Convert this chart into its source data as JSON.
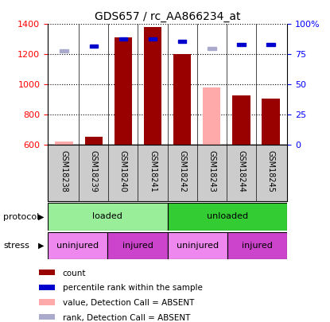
{
  "title": "GDS657 / rc_AA866234_at",
  "samples": [
    "GSM18238",
    "GSM18239",
    "GSM18240",
    "GSM18241",
    "GSM18242",
    "GSM18243",
    "GSM18244",
    "GSM18245"
  ],
  "bar_values": [
    620,
    655,
    1310,
    1380,
    1200,
    980,
    930,
    905
  ],
  "bar_absent": [
    true,
    false,
    false,
    false,
    false,
    true,
    false,
    false
  ],
  "rank_values": [
    78,
    82,
    88,
    88,
    86,
    80,
    83,
    83
  ],
  "rank_absent": [
    true,
    false,
    false,
    false,
    false,
    true,
    false,
    false
  ],
  "bar_color_present": "#990000",
  "bar_color_absent": "#ffaaaa",
  "rank_color_present": "#0000cc",
  "rank_color_absent": "#aaaacc",
  "ylim_left": [
    600,
    1400
  ],
  "ylim_right": [
    0,
    100
  ],
  "yticks_left": [
    600,
    800,
    1000,
    1200,
    1400
  ],
  "yticks_right": [
    0,
    25,
    50,
    75,
    100
  ],
  "ytick_labels_right": [
    "0",
    "25",
    "50",
    "75",
    "100%"
  ],
  "protocol_labels": [
    "loaded",
    "unloaded"
  ],
  "protocol_ranges": [
    [
      0,
      4
    ],
    [
      4,
      8
    ]
  ],
  "protocol_color_loaded": "#99ee99",
  "protocol_color_unloaded": "#33cc33",
  "stress_labels": [
    "uninjured",
    "injured",
    "uninjured",
    "injured"
  ],
  "stress_ranges": [
    [
      0,
      2
    ],
    [
      2,
      4
    ],
    [
      4,
      6
    ],
    [
      6,
      8
    ]
  ],
  "stress_color_uninjured": "#ee88ee",
  "stress_color_injured": "#cc44cc",
  "legend_items": [
    {
      "color": "#990000",
      "label": "count"
    },
    {
      "color": "#0000cc",
      "label": "percentile rank within the sample"
    },
    {
      "color": "#ffaaaa",
      "label": "value, Detection Call = ABSENT"
    },
    {
      "color": "#aaaacc",
      "label": "rank, Detection Call = ABSENT"
    }
  ]
}
